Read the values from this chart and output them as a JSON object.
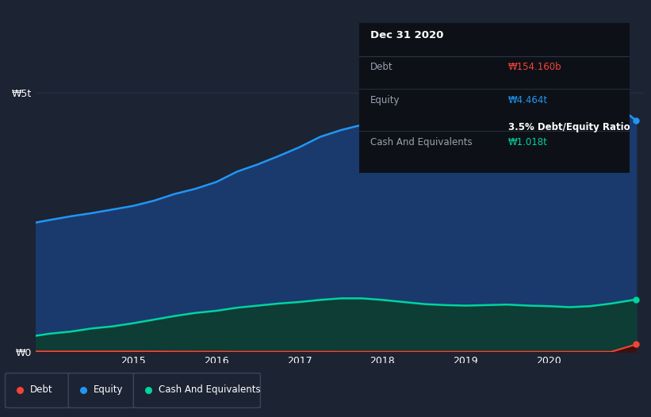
{
  "background_color": "#1c2333",
  "chart_bg_color": "#1c2333",
  "grid_color": "#2a3448",
  "x_years": [
    2013.83,
    2014.0,
    2014.25,
    2014.5,
    2014.75,
    2015.0,
    2015.25,
    2015.5,
    2015.75,
    2016.0,
    2016.25,
    2016.5,
    2016.75,
    2017.0,
    2017.25,
    2017.5,
    2017.75,
    2018.0,
    2018.25,
    2018.5,
    2018.75,
    2019.0,
    2019.25,
    2019.5,
    2019.75,
    2020.0,
    2020.25,
    2020.5,
    2020.75,
    2021.05
  ],
  "equity": [
    2.5,
    2.55,
    2.62,
    2.68,
    2.75,
    2.82,
    2.92,
    3.05,
    3.15,
    3.28,
    3.48,
    3.62,
    3.78,
    3.95,
    4.15,
    4.28,
    4.38,
    4.45,
    4.5,
    4.48,
    4.5,
    4.58,
    4.68,
    4.73,
    4.78,
    4.82,
    4.88,
    4.87,
    4.84,
    4.464
  ],
  "cash": [
    0.32,
    0.36,
    0.4,
    0.46,
    0.5,
    0.56,
    0.63,
    0.7,
    0.76,
    0.8,
    0.86,
    0.9,
    0.94,
    0.97,
    1.01,
    1.04,
    1.04,
    1.01,
    0.97,
    0.93,
    0.91,
    0.9,
    0.91,
    0.92,
    0.9,
    0.89,
    0.87,
    0.89,
    0.94,
    1.018
  ],
  "debt": [
    0.018,
    0.018,
    0.018,
    0.018,
    0.018,
    0.018,
    0.017,
    0.015,
    0.014,
    0.014,
    0.012,
    0.012,
    0.012,
    0.012,
    0.012,
    0.011,
    0.011,
    0.011,
    0.011,
    0.011,
    0.011,
    0.011,
    0.011,
    0.011,
    0.011,
    0.011,
    0.011,
    0.011,
    0.011,
    0.154
  ],
  "equity_color": "#2196f3",
  "equity_fill": "#1a3a6e",
  "cash_color": "#00d4a0",
  "cash_fill": "#0d3d35",
  "debt_color": "#f44336",
  "debt_fill": "#3d1010",
  "ylim": [
    0,
    5.5
  ],
  "xlim": [
    2013.83,
    2021.15
  ],
  "xtick_years": [
    2015,
    2016,
    2017,
    2018,
    2019,
    2020
  ],
  "tooltip_title": "Dec 31 2020",
  "tooltip_debt_label": "Debt",
  "tooltip_debt_value": "₩154.160b",
  "tooltip_equity_label": "Equity",
  "tooltip_equity_value": "₩4.464t",
  "tooltip_ratio": "3.5% Debt/Equity Ratio",
  "tooltip_cash_label": "Cash And Equivalents",
  "tooltip_cash_value": "₩1.018t",
  "legend_labels": [
    "Debt",
    "Equity",
    "Cash And Equivalents"
  ],
  "legend_colors": [
    "#f44336",
    "#2196f3",
    "#00d4a0"
  ]
}
